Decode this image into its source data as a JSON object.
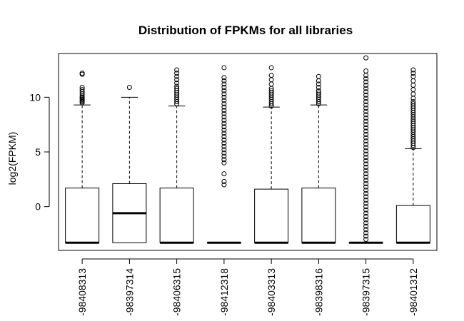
{
  "chart_data": {
    "type": "boxplot",
    "title": "Distribution of FPKMs for all libraries",
    "xlabel": "",
    "ylabel": "log2(FPKM)",
    "ylim": [
      -4.0,
      14.0
    ],
    "yticks": [
      0,
      5,
      10
    ],
    "grid": false,
    "categories": [
      "-98408313",
      "-98397314",
      "-98406315",
      "-98412318",
      "-98403313",
      "-98398316",
      "-98397315",
      "-98401312"
    ],
    "boxes": [
      {
        "whisker_low": -3.3,
        "q1": -3.3,
        "median": -3.3,
        "q3": 1.7,
        "whisker_high": 9.3,
        "outliers": [
          9.5,
          9.6,
          9.7,
          9.8,
          9.9,
          10.0,
          10.1,
          10.3,
          10.5,
          10.7,
          10.9,
          12.1,
          12.2
        ]
      },
      {
        "whisker_low": -3.3,
        "q1": -3.3,
        "median": -0.6,
        "q3": 2.1,
        "whisker_high": 10.0,
        "outliers": [
          10.9
        ]
      },
      {
        "whisker_low": -3.3,
        "q1": -3.3,
        "median": -3.3,
        "q3": 1.7,
        "whisker_high": 9.2,
        "outliers": [
          9.4,
          9.6,
          9.8,
          10.0,
          10.2,
          10.4,
          10.6,
          10.8,
          11.0,
          11.3,
          11.6,
          11.9,
          12.2,
          12.5
        ]
      },
      {
        "whisker_low": -3.3,
        "q1": -3.3,
        "median": -3.3,
        "q3": -3.3,
        "whisker_high": -3.3,
        "outliers": [
          2.0,
          2.3,
          3.0,
          4.0,
          4.3,
          4.6,
          4.9,
          5.2,
          5.5,
          5.8,
          6.1,
          6.4,
          6.7,
          7.0,
          7.3,
          7.6,
          7.9,
          8.2,
          8.5,
          8.8,
          9.1,
          9.4,
          9.7,
          10.0,
          10.3,
          10.6,
          10.9,
          11.2,
          11.5,
          11.8,
          12.7
        ]
      },
      {
        "whisker_low": -3.3,
        "q1": -3.3,
        "median": -3.3,
        "q3": 1.6,
        "whisker_high": 9.1,
        "outliers": [
          9.2,
          9.4,
          9.6,
          9.8,
          10.0,
          10.2,
          10.4,
          10.6,
          10.8,
          11.2,
          11.6,
          12.0,
          12.7
        ]
      },
      {
        "whisker_low": -3.3,
        "q1": -3.3,
        "median": -3.3,
        "q3": 1.7,
        "whisker_high": 9.3,
        "outliers": [
          9.4,
          9.6,
          9.8,
          10.0,
          10.2,
          10.4,
          10.6,
          10.9,
          11.2,
          11.5,
          11.9
        ]
      },
      {
        "whisker_low": -3.3,
        "q1": -3.3,
        "median": -3.3,
        "q3": -3.3,
        "whisker_high": -3.3,
        "outliers": [
          -3.0,
          -2.7,
          -2.4,
          -2.1,
          -1.8,
          -1.5,
          -1.2,
          -0.9,
          -0.6,
          -0.3,
          0.0,
          0.3,
          0.6,
          0.9,
          1.2,
          1.5,
          1.8,
          2.1,
          2.4,
          2.7,
          3.0,
          3.3,
          3.6,
          3.9,
          4.2,
          4.5,
          4.8,
          5.1,
          5.4,
          5.7,
          6.0,
          6.3,
          6.6,
          6.9,
          7.2,
          7.5,
          7.8,
          8.1,
          8.4,
          8.7,
          9.0,
          9.3,
          9.6,
          9.9,
          10.2,
          10.5,
          10.8,
          11.1,
          11.4,
          11.7,
          12.0,
          12.4,
          13.6
        ]
      },
      {
        "whisker_low": -3.3,
        "q1": -3.3,
        "median": -3.3,
        "q3": 0.1,
        "whisker_high": 5.3,
        "outliers": [
          5.4,
          5.6,
          5.8,
          6.0,
          6.2,
          6.4,
          6.6,
          6.8,
          7.0,
          7.2,
          7.4,
          7.6,
          7.8,
          8.0,
          8.2,
          8.4,
          8.6,
          8.8,
          9.0,
          9.2,
          9.4,
          9.6,
          9.9,
          10.3,
          10.7,
          11.1,
          11.5,
          11.9,
          12.2,
          12.5
        ]
      }
    ]
  }
}
